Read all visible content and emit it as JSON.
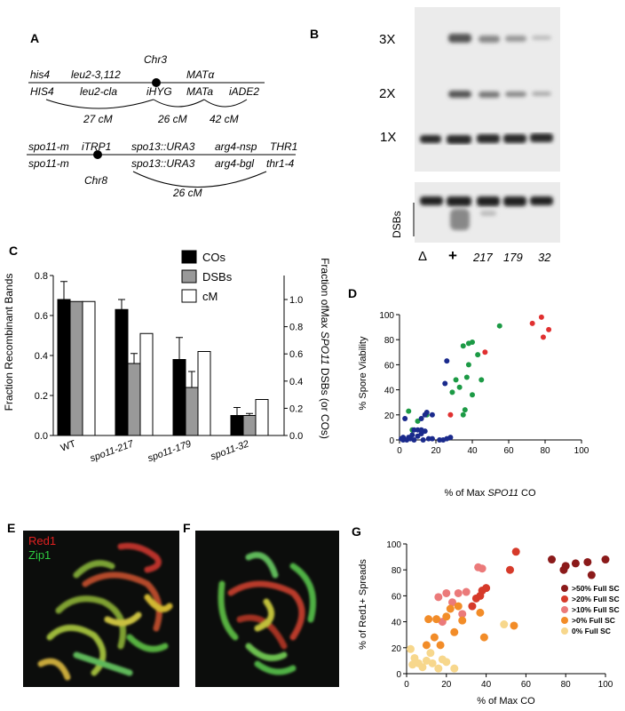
{
  "panels": {
    "A": "A",
    "B": "B",
    "C": "C",
    "D": "D",
    "E": "E",
    "F": "F",
    "G": "G"
  },
  "chr3": {
    "name": "Chr3",
    "top": [
      "his4",
      "leu2-3,112",
      "MATα"
    ],
    "bottom": [
      "HIS4",
      "leu2-cla",
      "iHYG",
      "MATa",
      "iADE2"
    ],
    "distances": [
      "27 cM",
      "26 cM",
      "42 cM"
    ]
  },
  "chr8": {
    "name": "Chr8",
    "top": [
      "spo11-m",
      "iTRP1",
      "spo13::URA3",
      "arg4-nsp",
      "THR1"
    ],
    "bottom": [
      "spo11-m",
      "spo13::URA3",
      "arg4-bgl",
      "thr1-4"
    ],
    "distance": "26 cM"
  },
  "gel": {
    "bands": [
      "3X",
      "2X",
      "1X"
    ],
    "dsb_label": "DSBs",
    "lanes": [
      "Δ",
      "+",
      "217",
      "179",
      "32"
    ]
  },
  "chart_c": {
    "type": "bar",
    "categories": [
      "WT",
      "spo11-217",
      "spo11-179",
      "spo11-32"
    ],
    "series": [
      {
        "name": "COs",
        "values": [
          0.68,
          0.63,
          0.38,
          0.1
        ],
        "errors": [
          0.09,
          0.05,
          0.11,
          0.04
        ],
        "color": "#000000"
      },
      {
        "name": "DSBs",
        "values": [
          0.67,
          0.36,
          0.24,
          0.1
        ],
        "errors": [
          0,
          0.05,
          0.08,
          0.01
        ],
        "color": "#999999"
      },
      {
        "name": "cM",
        "values": [
          0.67,
          0.51,
          0.42,
          0.18
        ],
        "errors": [
          0,
          0,
          0,
          0
        ],
        "color": "#ffffff"
      }
    ],
    "ylabel_left": "Fraction Recombinant Bands",
    "ylabel_right_parts": [
      "Fraction ofMax ",
      "SPO11",
      " DSBs (or COs)"
    ],
    "left_ticks": [
      "0.0",
      "0.2",
      "0.4",
      "0.6",
      "0.8"
    ],
    "right_ticks": [
      "0.0",
      "0.2",
      "0.4",
      "0.6",
      "0.8",
      "1.0"
    ],
    "ylim": [
      0,
      0.8
    ]
  },
  "chart_d": {
    "type": "scatter",
    "xlabel_parts": [
      "% of Max ",
      "SPO11",
      " CO"
    ],
    "ylabel": "% Spore Viability",
    "xlim": [
      0,
      100
    ],
    "ylim": [
      0,
      100
    ],
    "ticks": [
      "0",
      "20",
      "40",
      "60",
      "80",
      "100"
    ],
    "series": [
      {
        "color": "#e03030",
        "points": [
          [
            73,
            93
          ],
          [
            78,
            98
          ],
          [
            82,
            88
          ],
          [
            79,
            82
          ],
          [
            47,
            70
          ],
          [
            28,
            20
          ]
        ]
      },
      {
        "color": "#1c9a45",
        "points": [
          [
            55,
            91
          ],
          [
            38,
            77
          ],
          [
            40,
            78
          ],
          [
            35,
            75
          ],
          [
            43,
            68
          ],
          [
            38,
            60
          ],
          [
            37,
            50
          ],
          [
            45,
            48
          ],
          [
            31,
            48
          ],
          [
            33,
            42
          ],
          [
            29,
            38
          ],
          [
            40,
            36
          ],
          [
            36,
            24
          ],
          [
            35,
            20
          ],
          [
            15,
            20
          ],
          [
            5,
            23
          ],
          [
            10,
            15
          ],
          [
            7,
            8
          ]
        ]
      },
      {
        "color": "#1a2a8c",
        "points": [
          [
            26,
            63
          ],
          [
            25,
            45
          ],
          [
            15,
            22
          ],
          [
            18,
            20
          ],
          [
            14,
            20
          ],
          [
            12,
            17
          ],
          [
            3,
            17
          ],
          [
            8,
            8
          ],
          [
            10,
            8
          ],
          [
            12,
            8
          ],
          [
            14,
            7
          ],
          [
            7,
            4
          ],
          [
            10,
            3
          ],
          [
            12,
            5
          ],
          [
            5,
            2
          ],
          [
            2,
            2
          ],
          [
            2,
            0
          ],
          [
            4,
            0
          ],
          [
            8,
            0
          ],
          [
            13,
            0
          ],
          [
            16,
            1
          ],
          [
            18,
            1
          ],
          [
            22,
            0
          ],
          [
            24,
            0
          ],
          [
            26,
            1
          ],
          [
            28,
            2
          ],
          [
            1,
            1
          ],
          [
            6,
            1
          ]
        ]
      }
    ]
  },
  "micrographs": {
    "red_label": "Red1",
    "green_label": "Zip1"
  },
  "chart_g": {
    "type": "scatter",
    "xlabel": "% of Max CO",
    "ylabel": "% of Red1+ Spreads",
    "xlim": [
      0,
      100
    ],
    "ylim": [
      0,
      100
    ],
    "ticks": [
      "0",
      "20",
      "40",
      "60",
      "80",
      "100"
    ],
    "series": [
      {
        "name": ">50% Full SC",
        "color": "#8b1a1a",
        "points": [
          [
            73,
            88
          ],
          [
            80,
            83
          ],
          [
            79,
            80
          ],
          [
            85,
            85
          ],
          [
            91,
            86
          ],
          [
            93,
            76
          ],
          [
            100,
            88
          ]
        ]
      },
      {
        "name": ">20% Full SC",
        "color": "#d63a2a",
        "points": [
          [
            55,
            94
          ],
          [
            52,
            80
          ],
          [
            40,
            66
          ],
          [
            37,
            60
          ],
          [
            38,
            64
          ],
          [
            35,
            58
          ],
          [
            33,
            52
          ]
        ]
      },
      {
        "name": ">10% Full SC",
        "color": "#eb7a7a",
        "points": [
          [
            26,
            62
          ],
          [
            30,
            63
          ],
          [
            36,
            82
          ],
          [
            38,
            81
          ],
          [
            23,
            55
          ],
          [
            20,
            62
          ],
          [
            16,
            59
          ],
          [
            18,
            40
          ],
          [
            28,
            46
          ]
        ]
      },
      {
        "name": ">0% Full SC",
        "color": "#f28c28",
        "points": [
          [
            37,
            47
          ],
          [
            26,
            52
          ],
          [
            28,
            41
          ],
          [
            22,
            50
          ],
          [
            20,
            44
          ],
          [
            15,
            42
          ],
          [
            11,
            42
          ],
          [
            10,
            22
          ],
          [
            17,
            22
          ],
          [
            14,
            28
          ],
          [
            39,
            28
          ],
          [
            54,
            37
          ],
          [
            24,
            32
          ]
        ]
      },
      {
        "name": "0% Full SC",
        "color": "#f7d78c",
        "points": [
          [
            2,
            19
          ],
          [
            4,
            12
          ],
          [
            6,
            8
          ],
          [
            8,
            5
          ],
          [
            10,
            10
          ],
          [
            13,
            8
          ],
          [
            12,
            16
          ],
          [
            18,
            11
          ],
          [
            20,
            9
          ],
          [
            24,
            4
          ],
          [
            16,
            4
          ],
          [
            49,
            38
          ],
          [
            3,
            7
          ]
        ]
      }
    ]
  }
}
